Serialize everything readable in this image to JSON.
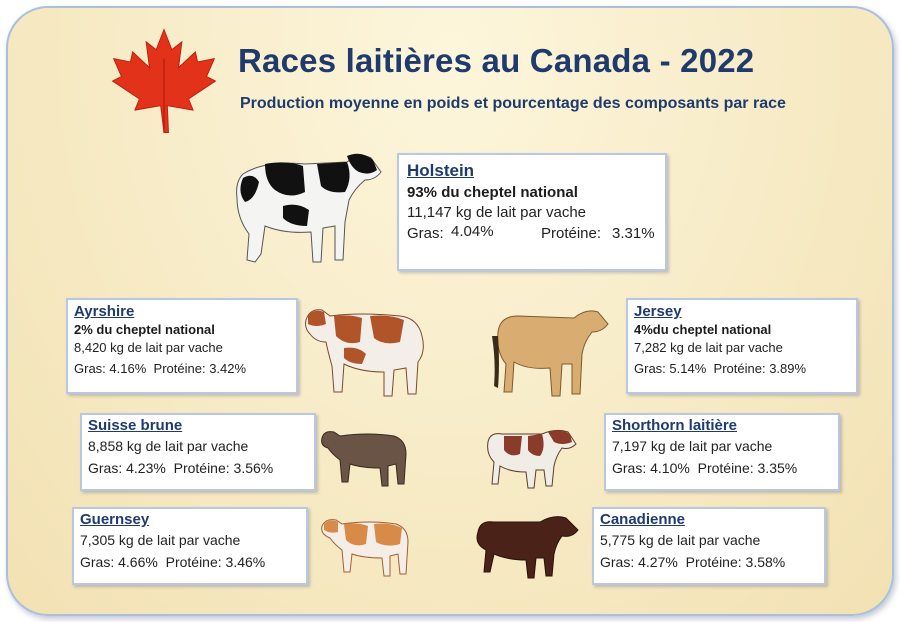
{
  "title": "Races laitières au Canada - 2022",
  "subtitle": "Production moyenne en poids et pourcentage des composants par race",
  "labels": {
    "fat": "Gras:",
    "protein": "Protéine:"
  },
  "breeds": {
    "holstein": {
      "name": "Holstein",
      "share": "93% du cheptel national",
      "milk": "11,147 kg de lait par vache",
      "fat": "4.04%",
      "protein": "3.31%"
    },
    "ayrshire": {
      "name": "Ayrshire",
      "share": "2% du cheptel national",
      "milk": "8,420 kg de lait par vache",
      "fat": "4.16%",
      "protein": "3.42%"
    },
    "jersey": {
      "name": "Jersey",
      "share": "4%du cheptel national",
      "milk": "7,282 kg de lait par vache",
      "fat": "5.14%",
      "protein": "3.89%"
    },
    "suisse_brune": {
      "name": "Suisse brune",
      "milk": "8,858 kg de lait par vache",
      "fat": "4.23%",
      "protein": "3.56%"
    },
    "shorthorn": {
      "name": "Shorthorn laitière",
      "milk": "7,197 kg de lait par vache",
      "fat": "4.10%",
      "protein": "3.35%"
    },
    "guernsey": {
      "name": "Guernsey",
      "milk": "7,305 kg de lait par vache",
      "fat": "4.66%",
      "protein": "3.46%"
    },
    "canadienne": {
      "name": "Canadienne",
      "milk": "5,775 kg de lait par vache",
      "fat": "4.27%",
      "protein": "3.58%"
    }
  },
  "colors": {
    "title": "#1f3b6e",
    "leaf": "#e2321a",
    "card_border": "#b7c7e4"
  },
  "icons": [
    "maple-leaf-icon",
    "holstein-cow-icon",
    "ayrshire-cow-icon",
    "jersey-cow-icon",
    "brown-swiss-cow-icon",
    "shorthorn-cow-icon",
    "guernsey-cow-icon",
    "canadienne-cow-icon"
  ]
}
